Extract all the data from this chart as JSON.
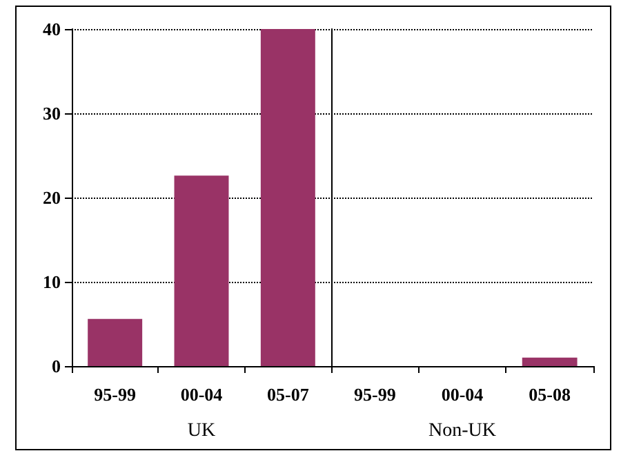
{
  "chart_data": [
    {
      "type": "bar",
      "categories": [
        "95-99",
        "00-04",
        "05-07"
      ],
      "values": [
        5.6,
        22.6,
        40
      ],
      "color": "#993366",
      "ylim": [
        0,
        40
      ],
      "yticks": [
        0,
        10,
        20,
        30,
        40
      ],
      "grid": "y",
      "xlabel": "UK"
    },
    {
      "type": "bar",
      "categories": [
        "95-99",
        "00-04",
        "05-08"
      ],
      "values": [
        0,
        0,
        1
      ],
      "color": "#993366",
      "ylim": [
        0,
        40
      ],
      "yticks": [
        0,
        10,
        20,
        30,
        40
      ],
      "grid": "y",
      "xlabel": "Non-UK",
      "tick_labels": "x"
    }
  ]
}
